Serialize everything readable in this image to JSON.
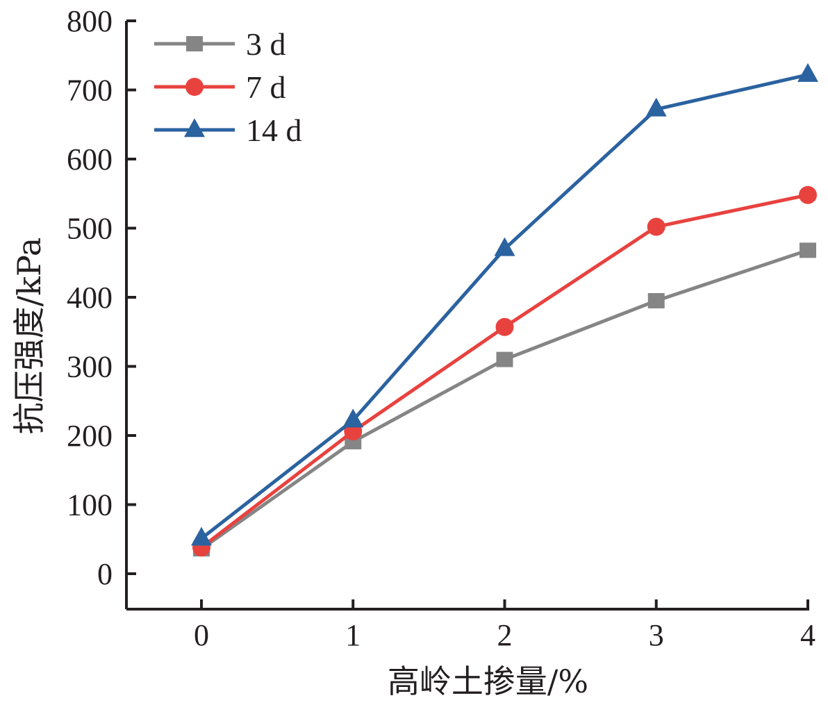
{
  "chart_data": {
    "type": "line",
    "title": "",
    "xlabel": "高岭土掺量/%",
    "ylabel": "抗压强度/kPa",
    "x": [
      0,
      1,
      2,
      3,
      4
    ],
    "xticks": [
      "0",
      "1",
      "2",
      "3",
      "4"
    ],
    "yticks": [
      "0",
      "100",
      "200",
      "300",
      "400",
      "500",
      "600",
      "700",
      "800"
    ],
    "xlim": [
      -0.5,
      4
    ],
    "ylim": [
      -50,
      800
    ],
    "grid": false,
    "legend_position": "top-left",
    "series": [
      {
        "name": "3 d",
        "color": "#858585",
        "marker": "square",
        "values": [
          36,
          191,
          310,
          395,
          468
        ]
      },
      {
        "name": "7 d",
        "color": "#e8423f",
        "marker": "circle",
        "values": [
          38,
          206,
          357,
          502,
          548
        ]
      },
      {
        "name": "14 d",
        "color": "#2b62a0",
        "marker": "triangle",
        "values": [
          51,
          222,
          470,
          672,
          722
        ]
      }
    ]
  }
}
